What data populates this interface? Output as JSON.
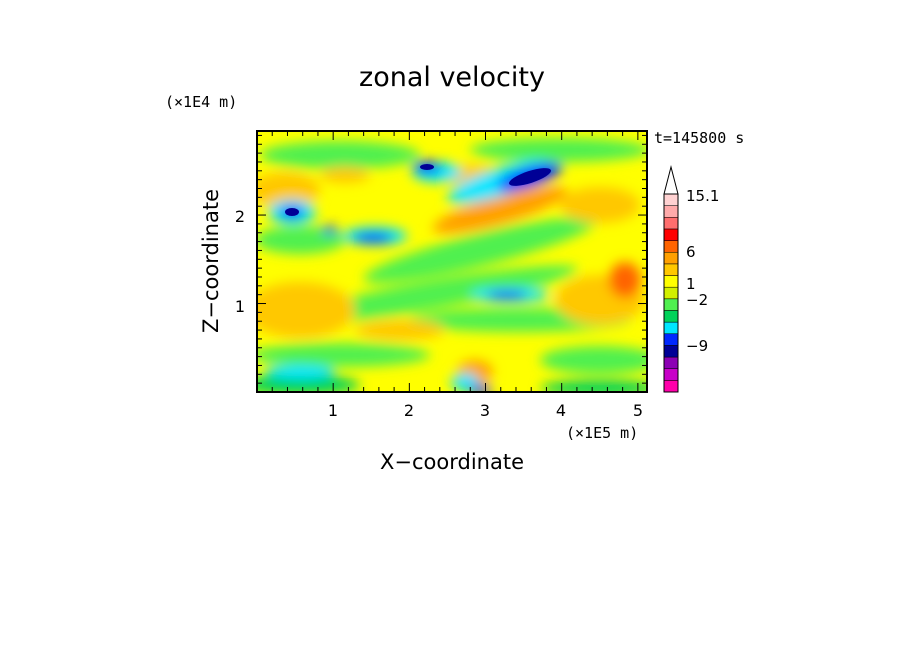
{
  "chart_data": {
    "type": "heatmap",
    "title": "zonal velocity",
    "xlabel": "X−coordinate",
    "ylabel": "Z−coordinate",
    "x_unit": "(×1E5 m)",
    "y_unit": "(×1E4 m)",
    "time_label": "t=145800 s",
    "xlim": [
      0,
      5.12
    ],
    "ylim": [
      0,
      2.95
    ],
    "x_ticks": [
      1,
      2,
      3,
      4,
      5
    ],
    "y_ticks": [
      1,
      2
    ],
    "x_tick_labels": [
      "1",
      "2",
      "3",
      "4",
      "5"
    ],
    "y_tick_labels": [
      "1",
      "2"
    ],
    "colorbar": {
      "ticks": [
        "15.1",
        "6",
        "1",
        "−2",
        "−9"
      ],
      "colors": [
        "#ff00aa",
        "#c800c8",
        "#8c00b4",
        "#000096",
        "#0028ff",
        "#00e6ff",
        "#00d25a",
        "#50f050",
        "#d2f000",
        "#ffff00",
        "#ffc800",
        "#ffa000",
        "#ff6400",
        "#ff0000",
        "#ff6e6e",
        "#ffaaaa",
        "#ffd2d2"
      ],
      "triangle_color": "#ffffff"
    }
  },
  "colors": {
    "frame": "#000000",
    "background": "#ffffff"
  }
}
